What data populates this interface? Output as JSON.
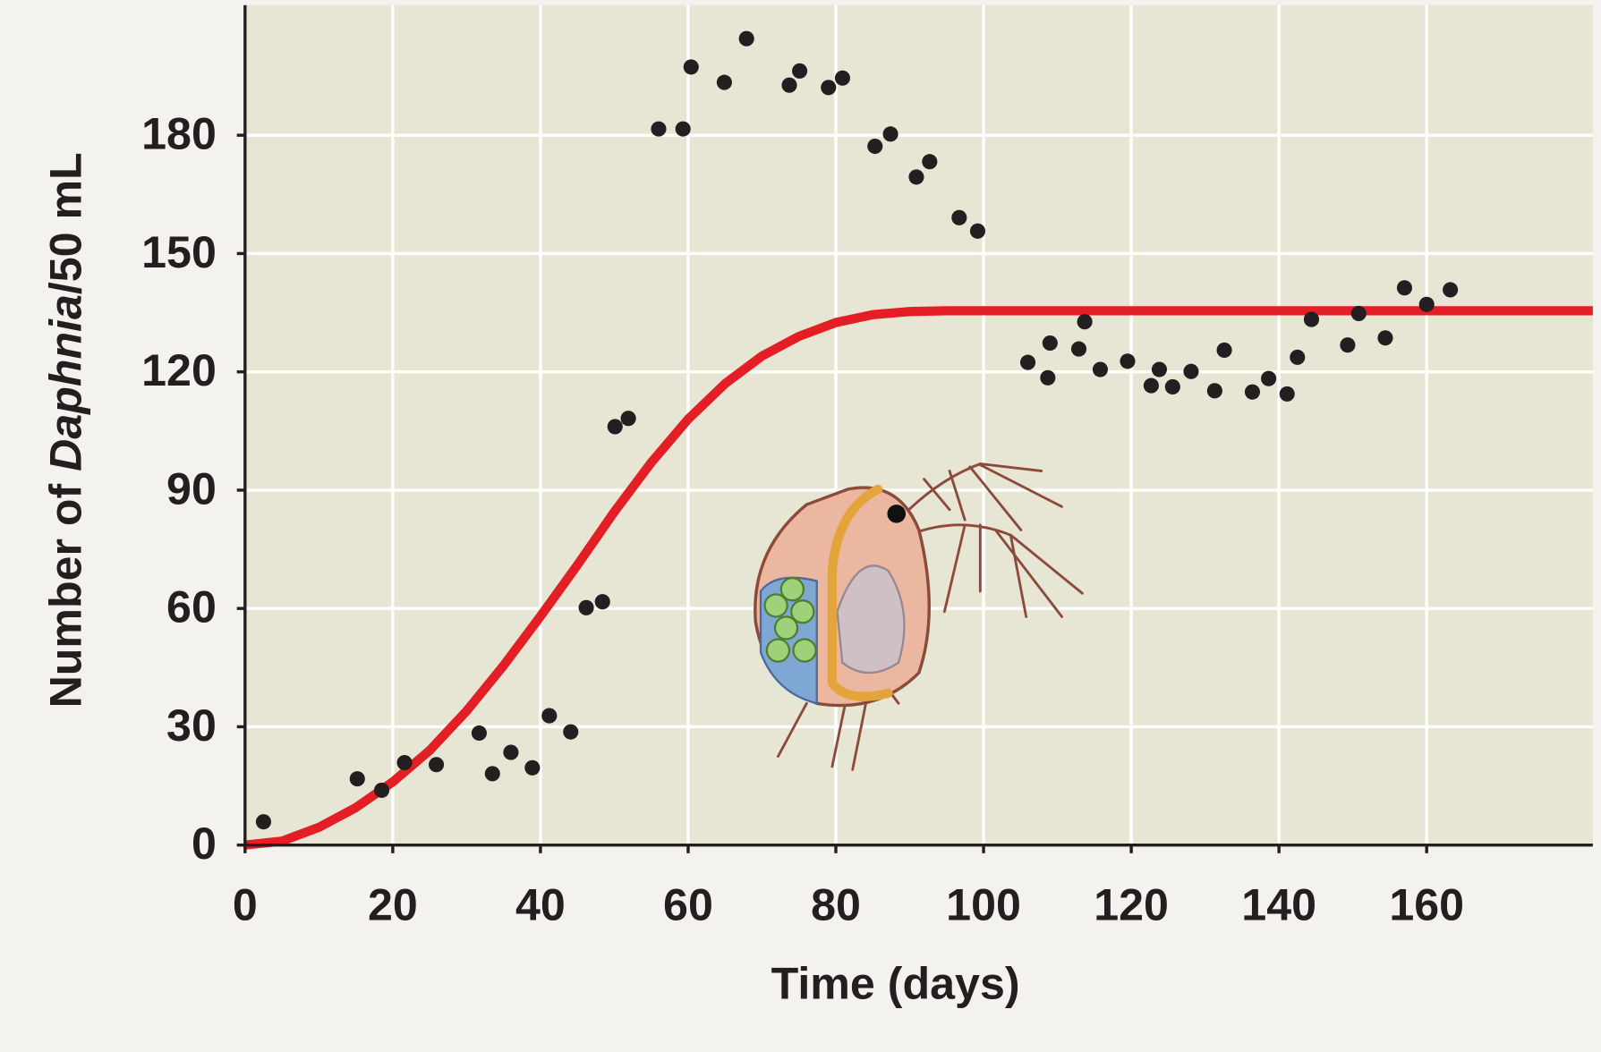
{
  "chart_data": {
    "type": "scatter",
    "y_label": [
      "Number of ",
      "Daphnia",
      "/50 mL"
    ],
    "x_label": "Time (days)",
    "xlim": [
      0,
      182.5
    ],
    "ylim": [
      0,
      213
    ],
    "xticks": [
      0,
      20,
      40,
      60,
      80,
      100,
      120,
      140,
      160
    ],
    "yticks": [
      0,
      30,
      60,
      90,
      120,
      150,
      180
    ],
    "grid": true,
    "series": [
      {
        "type": "scatter",
        "color": "#231f20",
        "x": [
          2.5,
          15.2,
          18.5,
          21.6,
          25.9,
          31.7,
          33.5,
          36.0,
          38.9,
          41.2,
          44.1,
          46.2,
          48.4,
          50.1,
          51.9,
          56.0,
          59.3,
          60.4,
          64.9,
          67.9,
          73.7,
          75.1,
          79.0,
          80.9,
          85.3,
          87.4,
          90.9,
          92.7,
          96.7,
          99.2,
          106.0,
          109.0,
          108.7,
          112.9,
          113.7,
          115.8,
          119.5,
          122.7,
          123.8,
          125.6,
          128.1,
          131.3,
          132.6,
          136.4,
          138.6,
          141.1,
          142.5,
          144.4,
          149.3,
          150.8,
          154.4,
          157.0,
          160.0,
          163.2
        ],
        "values": [
          5.9,
          16.8,
          13.9,
          20.9,
          20.4,
          28.4,
          18.1,
          23.5,
          19.6,
          32.8,
          28.7,
          60.2,
          61.7,
          106.1,
          108.2,
          181.6,
          181.6,
          197.3,
          193.4,
          204.5,
          192.7,
          196.3,
          192.1,
          194.5,
          177.2,
          180.3,
          169.4,
          173.3,
          159.1,
          155.7,
          122.4,
          127.3,
          118.5,
          125.8,
          132.7,
          120.6,
          122.7,
          116.5,
          120.6,
          116.2,
          120.1,
          115.2,
          125.5,
          114.9,
          118.3,
          114.4,
          123.7,
          133.3,
          126.8,
          134.8,
          128.6,
          141.3,
          137.1,
          140.8
        ]
      },
      {
        "type": "line",
        "color": "#e31e24",
        "x": [
          0,
          5,
          10,
          15,
          20,
          25,
          30,
          35,
          40,
          45,
          50,
          55,
          60,
          65,
          70,
          75,
          80,
          85,
          90,
          95,
          100,
          182.5
        ],
        "values": [
          0,
          1,
          4.5,
          9.5,
          16,
          24,
          34,
          45.5,
          58,
          71,
          84.5,
          97,
          108,
          117,
          124,
          129,
          132.5,
          134.5,
          135.3,
          135.5,
          135.5,
          135.5
        ]
      }
    ]
  }
}
